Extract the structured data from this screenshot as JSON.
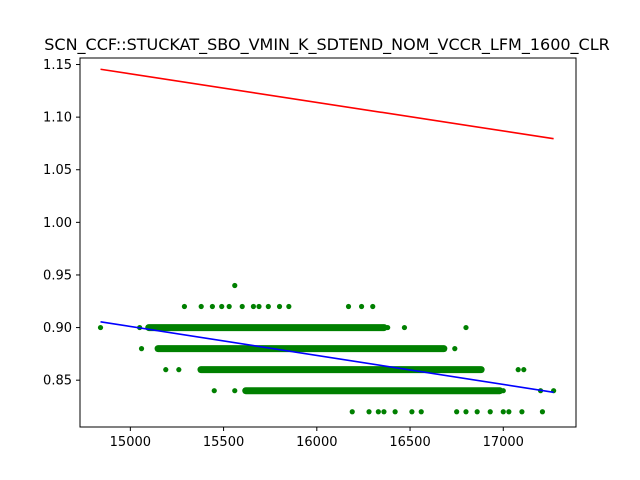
{
  "chart_data": {
    "type": "scatter",
    "title": "SCN_CCF::STUCKAT_SBO_VMIN_K_SDTEND_NOM_VCCR_LFM_1600_CLR",
    "xlabel": "",
    "ylabel": "",
    "xlim": [
      14730,
      17390
    ],
    "ylim": [
      0.8055,
      1.1562
    ],
    "x_ticks": [
      15000,
      15500,
      16000,
      16500,
      17000
    ],
    "y_ticks": [
      0.85,
      0.9,
      0.95,
      1.0,
      1.05,
      1.1,
      1.15
    ],
    "grid": false,
    "colors": {
      "points": "#008000",
      "upper_line": "#ff0000",
      "lower_line": "#0000ff"
    },
    "series": [
      {
        "type": "scatter",
        "points": [
          [
            14840,
            0.9
          ],
          [
            15560,
            0.94
          ],
          [
            15290,
            0.92
          ],
          [
            15380,
            0.92
          ],
          [
            15440,
            0.92
          ],
          [
            15490,
            0.92
          ],
          [
            15530,
            0.92
          ],
          [
            15600,
            0.92
          ],
          [
            15660,
            0.92
          ],
          [
            15690,
            0.92
          ],
          [
            15740,
            0.92
          ],
          [
            15800,
            0.92
          ],
          [
            15850,
            0.92
          ],
          [
            16170,
            0.92
          ],
          [
            16240,
            0.92
          ],
          [
            16300,
            0.92
          ],
          [
            15050,
            0.9
          ],
          [
            15200,
            0.9
          ],
          [
            15400,
            0.9
          ],
          [
            15700,
            0.9
          ],
          [
            16000,
            0.9
          ],
          [
            16200,
            0.9
          ],
          [
            16300,
            0.9
          ],
          [
            16380,
            0.9
          ],
          [
            16470,
            0.9
          ],
          [
            16800,
            0.9
          ],
          [
            15060,
            0.88
          ],
          [
            15200,
            0.88
          ],
          [
            15500,
            0.88
          ],
          [
            15800,
            0.88
          ],
          [
            16100,
            0.88
          ],
          [
            16400,
            0.88
          ],
          [
            16600,
            0.88
          ],
          [
            16740,
            0.88
          ],
          [
            15190,
            0.86
          ],
          [
            15260,
            0.86
          ],
          [
            15400,
            0.86
          ],
          [
            15700,
            0.86
          ],
          [
            16000,
            0.86
          ],
          [
            16300,
            0.86
          ],
          [
            16600,
            0.86
          ],
          [
            16880,
            0.86
          ],
          [
            17080,
            0.86
          ],
          [
            17110,
            0.86
          ],
          [
            15450,
            0.84
          ],
          [
            15560,
            0.84
          ],
          [
            15800,
            0.84
          ],
          [
            16100,
            0.84
          ],
          [
            16400,
            0.84
          ],
          [
            16700,
            0.84
          ],
          [
            17000,
            0.84
          ],
          [
            17200,
            0.84
          ],
          [
            17270,
            0.84
          ],
          [
            16190,
            0.82
          ],
          [
            16280,
            0.82
          ],
          [
            16330,
            0.82
          ],
          [
            16360,
            0.82
          ],
          [
            16420,
            0.82
          ],
          [
            16510,
            0.82
          ],
          [
            16560,
            0.82
          ],
          [
            16750,
            0.82
          ],
          [
            16800,
            0.82
          ],
          [
            16860,
            0.82
          ],
          [
            16930,
            0.82
          ],
          [
            17000,
            0.82
          ],
          [
            17030,
            0.82
          ],
          [
            17100,
            0.82
          ],
          [
            17210,
            0.82
          ]
        ],
        "dense_bands": [
          {
            "y": 0.9,
            "x_range": [
              15080,
              16380
            ]
          },
          {
            "y": 0.88,
            "x_range": [
              15130,
              16700
            ]
          },
          {
            "y": 0.86,
            "x_range": [
              15360,
              16900
            ]
          },
          {
            "y": 0.84,
            "x_range": [
              15600,
              17000
            ]
          }
        ]
      },
      {
        "type": "line",
        "points": [
          [
            14840,
            1.1455
          ],
          [
            17270,
            1.0795
          ]
        ]
      },
      {
        "type": "line",
        "points": [
          [
            14840,
            0.9055
          ],
          [
            17270,
            0.8385
          ]
        ]
      }
    ]
  }
}
